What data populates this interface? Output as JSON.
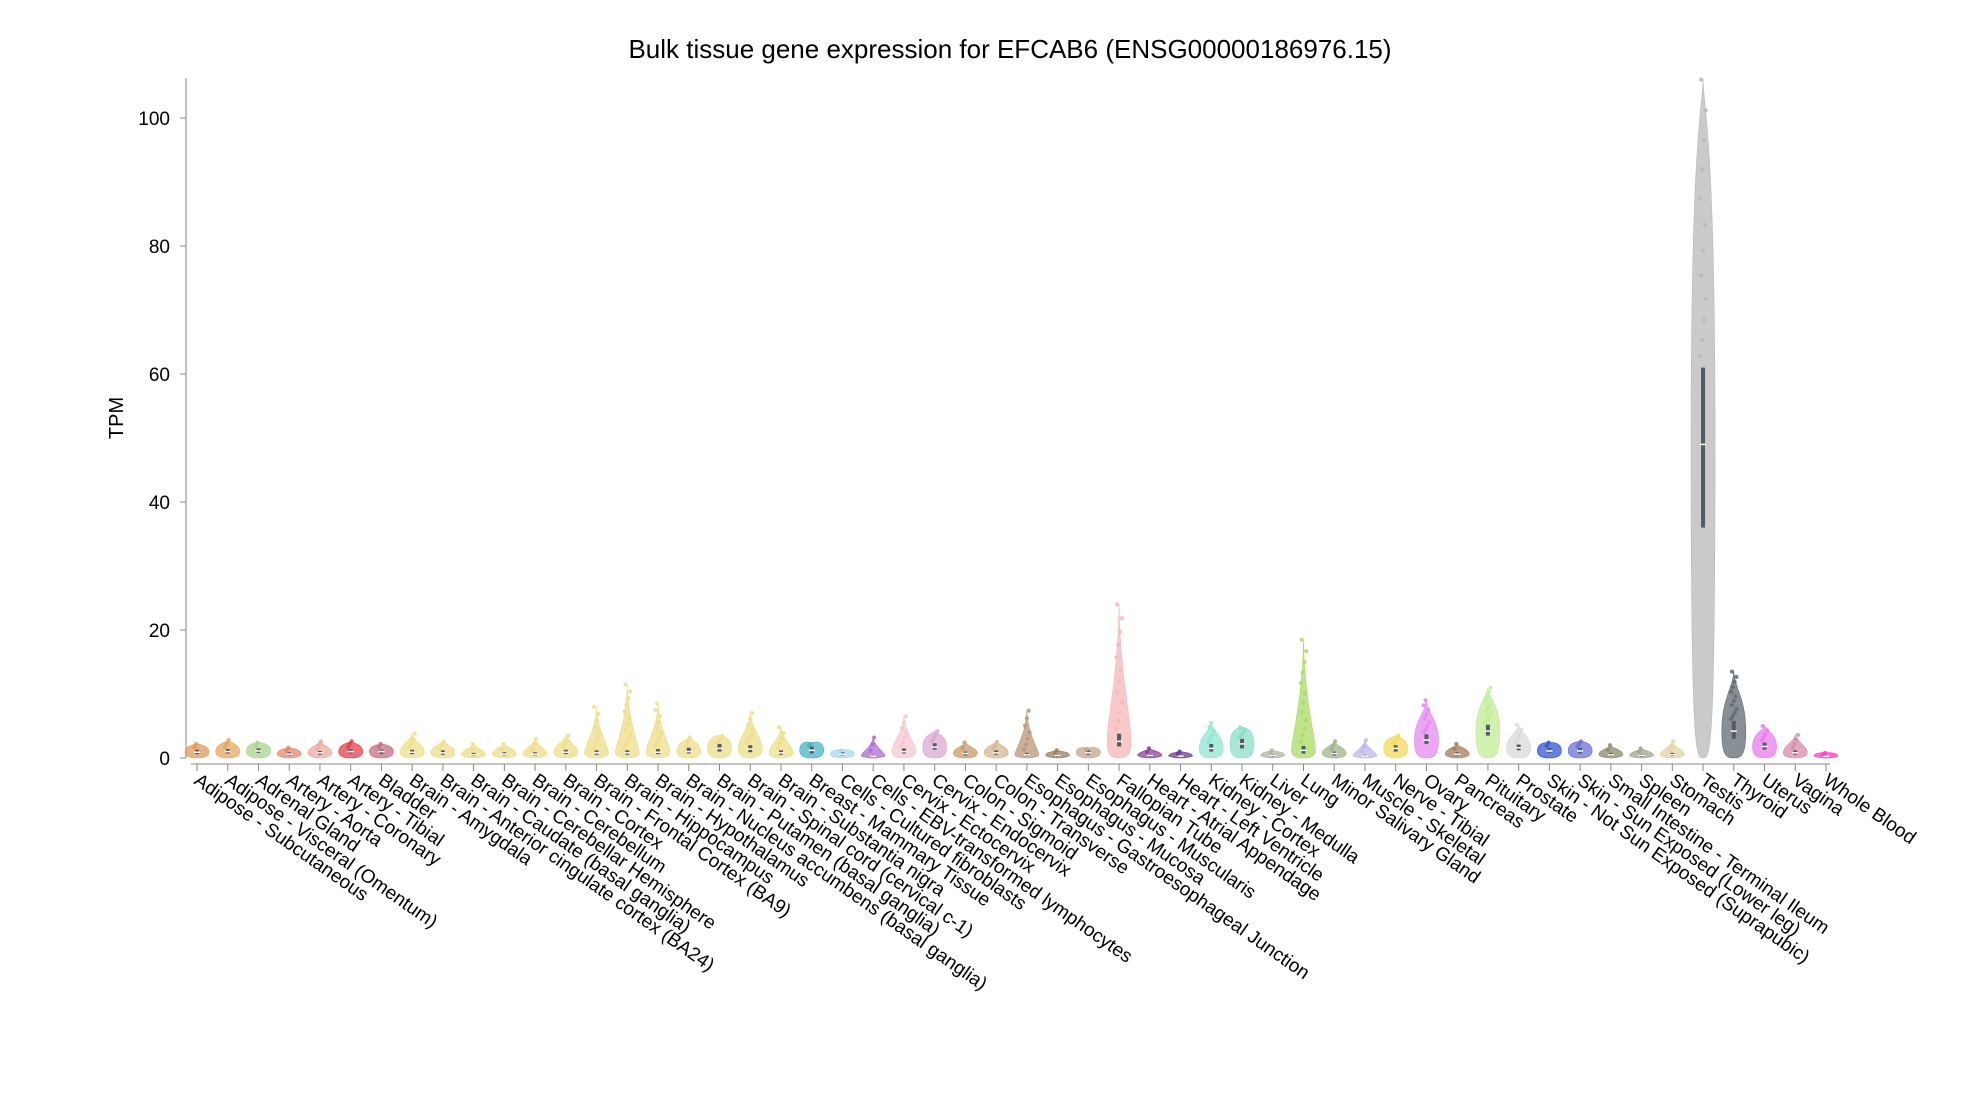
{
  "chart_data": {
    "type": "violin",
    "title": "Bulk tissue gene expression for EFCAB6 (ENSG00000186976.15)",
    "xlabel": "",
    "ylabel": "TPM",
    "ylim": [
      0,
      106
    ],
    "yticks": [
      0,
      20,
      40,
      60,
      80,
      100
    ],
    "grid": false,
    "legend": "none",
    "categories": [
      "Adipose - Subcutaneous",
      "Adipose - Visceral (Omentum)",
      "Adrenal Gland",
      "Artery - Aorta",
      "Artery - Coronary",
      "Artery - Tibial",
      "Bladder",
      "Brain - Amygdala",
      "Brain - Anterior cingulate cortex (BA24)",
      "Brain - Caudate (basal ganglia)",
      "Brain - Cerebellar Hemisphere",
      "Brain - Cerebellum",
      "Brain - Cortex",
      "Brain - Frontal Cortex (BA9)",
      "Brain - Hippocampus",
      "Brain - Hypothalamus",
      "Brain - Nucleus accumbens (basal ganglia)",
      "Brain - Putamen (basal ganglia)",
      "Brain - Spinal cord (cervical c-1)",
      "Brain - Substantia nigra",
      "Breast - Mammary Tissue",
      "Cells - Cultured fibroblasts",
      "Cells - EBV-transformed lymphocytes",
      "Cervix - Ectocervix",
      "Cervix - Endocervix",
      "Colon - Sigmoid",
      "Colon - Transverse",
      "Esophagus - Gastroesophageal Junction",
      "Esophagus - Mucosa",
      "Esophagus - Muscularis",
      "Fallopian Tube",
      "Heart - Atrial Appendage",
      "Heart - Left Ventricle",
      "Kidney - Cortex",
      "Kidney - Medulla",
      "Liver",
      "Lung",
      "Minor Salivary Gland",
      "Muscle - Skeletal",
      "Nerve - Tibial",
      "Ovary",
      "Pancreas",
      "Pituitary",
      "Prostate",
      "Skin - Not Sun Exposed (Suprapubic)",
      "Skin - Sun Exposed (Lower leg)",
      "Small Intestine - Terminal Ileum",
      "Spleen",
      "Stomach",
      "Testis",
      "Thyroid",
      "Uterus",
      "Vagina",
      "Whole Blood"
    ],
    "colors": [
      "#e09a5a",
      "#e6a75f",
      "#a7d58b",
      "#e8866d",
      "#f0a8a0",
      "#e0414d",
      "#c76d82",
      "#eedd88",
      "#eedd88",
      "#eedd88",
      "#eedd88",
      "#eedd88",
      "#eedd88",
      "#eedd88",
      "#eedd88",
      "#eedd88",
      "#eedd88",
      "#eedd88",
      "#eedd88",
      "#eedd88",
      "#46b4c4",
      "#a3d9ec",
      "#b06ad0",
      "#f5c7d1",
      "#dba8d3",
      "#c99a6b",
      "#d8b58d",
      "#bb9777",
      "#9c7c5a",
      "#c4a48b",
      "#f7b7b8",
      "#8b3f9b",
      "#6a3b8f",
      "#92e5d2",
      "#89dfc6",
      "#b3b59e",
      "#a9dc66",
      "#9fb48b",
      "#bdb6e9",
      "#f3d95b",
      "#e48af0",
      "#a57b5b",
      "#c1ec95",
      "#d9d9d9",
      "#3455d1",
      "#6b72d9",
      "#8b8967",
      "#9fa68e",
      "#e3d2a3",
      "#b8b8b8",
      "#606b71",
      "#e87cf0",
      "#d98aab",
      "#ff3ec8"
    ],
    "medians": [
      0.9,
      1.0,
      1.1,
      0.6,
      0.8,
      1.0,
      1.0,
      0.9,
      0.8,
      0.5,
      0.6,
      0.6,
      0.9,
      0.8,
      0.8,
      0.9,
      1.0,
      1.5,
      1.4,
      0.8,
      1.2,
      0.6,
      0.3,
      1.0,
      1.7,
      0.7,
      0.8,
      0.5,
      0.4,
      0.8,
      2.6,
      0.4,
      0.3,
      1.5,
      2.2,
      0.4,
      1.2,
      0.7,
      0.3,
      1.5,
      2.8,
      0.6,
      4.2,
      1.6,
      1.1,
      1.1,
      0.5,
      0.4,
      0.5,
      49.0,
      4.2,
      1.8,
      0.8,
      0.3
    ],
    "q1": [
      0.6,
      0.7,
      0.8,
      0.4,
      0.5,
      0.7,
      0.6,
      0.6,
      0.5,
      0.3,
      0.4,
      0.4,
      0.6,
      0.5,
      0.5,
      0.6,
      0.7,
      1.0,
      0.9,
      0.5,
      0.7,
      0.4,
      0.2,
      0.7,
      1.3,
      0.4,
      0.5,
      0.3,
      0.2,
      0.5,
      1.8,
      0.2,
      0.2,
      1.0,
      1.5,
      0.2,
      0.7,
      0.4,
      0.2,
      1.0,
      2.2,
      0.4,
      3.5,
      1.2,
      0.8,
      0.7,
      0.3,
      0.2,
      0.3,
      36.0,
      3.0,
      1.3,
      0.5,
      0.2
    ],
    "q3": [
      1.3,
      1.4,
      1.5,
      0.9,
      1.1,
      1.4,
      1.3,
      1.3,
      1.2,
      0.8,
      0.9,
      0.9,
      1.3,
      1.2,
      1.2,
      1.4,
      1.6,
      2.2,
      2.0,
      1.2,
      1.8,
      0.9,
      0.5,
      1.5,
      2.3,
      1.0,
      1.2,
      0.8,
      0.6,
      1.2,
      3.8,
      0.6,
      0.5,
      2.2,
      3.0,
      0.6,
      1.9,
      1.0,
      0.5,
      2.0,
      3.7,
      0.9,
      5.2,
      2.1,
      1.6,
      1.6,
      0.8,
      0.6,
      0.8,
      61.0,
      5.8,
      2.4,
      1.2,
      0.5
    ],
    "maxima": [
      2.2,
      2.8,
      2.4,
      1.6,
      2.6,
      2.6,
      2.2,
      3.8,
      2.6,
      2.2,
      2.2,
      3.0,
      3.5,
      8.0,
      11.5,
      8.5,
      3.2,
      3.5,
      7.0,
      4.8,
      2.2,
      1.2,
      3.2,
      6.5,
      4.2,
      2.4,
      2.5,
      7.4,
      1.2,
      1.4,
      24.0,
      1.5,
      1.0,
      5.5,
      4.8,
      1.2,
      18.5,
      2.6,
      2.8,
      3.5,
      9.0,
      2.2,
      11.0,
      5.2,
      2.4,
      2.6,
      2.0,
      1.5,
      2.6,
      106.0,
      13.5,
      5.0,
      3.6,
      0.8
    ]
  }
}
